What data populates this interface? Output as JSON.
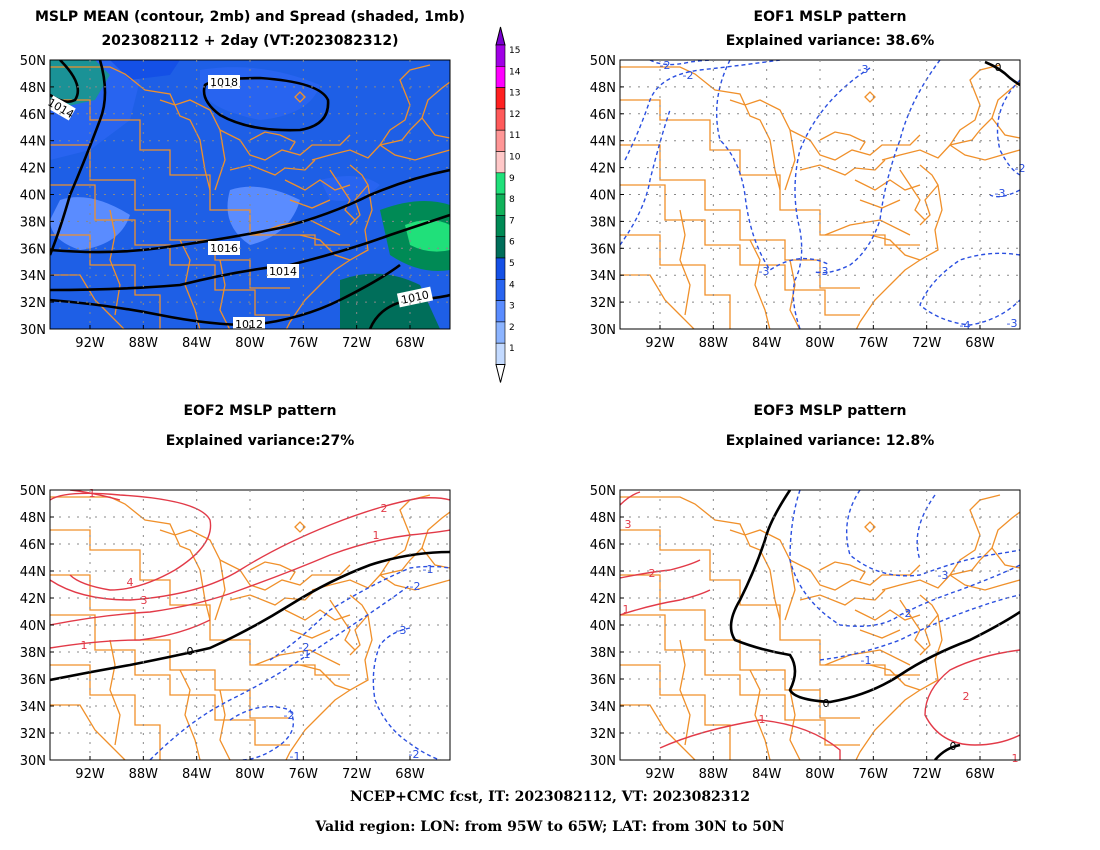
{
  "panels": [
    {
      "id": "mean",
      "title_line1": "MSLP MEAN (contour, 2mb) and Spread (shaded, 1mb)",
      "title_line2": "2023082112 + 2day (VT:2023082312)",
      "contour_labels": [
        "1018",
        "1016",
        "1014",
        "1012",
        "1010",
        "1014"
      ]
    },
    {
      "id": "eof1",
      "title_line1": "EOF1 MSLP pattern",
      "title_line2": "Explained variance: 38.6%",
      "contour_labels": [
        "-2",
        "-2",
        "-3",
        "0",
        "-3",
        "-3",
        "-3",
        "-4",
        "-3",
        "-2"
      ]
    },
    {
      "id": "eof2",
      "title_line1": "EOF2 MSLP pattern",
      "title_line2": "Explained variance:27%",
      "contour_labels": [
        "1",
        "4",
        "3",
        "2",
        "1",
        "-1",
        "-2",
        "-3",
        "0",
        "-1",
        "-2",
        "-2",
        "1",
        "-2",
        "-1"
      ]
    },
    {
      "id": "eof3",
      "title_line1": "EOF3 MSLP pattern",
      "title_line2": "Explained variance: 12.8%",
      "contour_labels": [
        "3",
        "2",
        "1",
        "-3",
        "-2",
        "-1",
        "0",
        "0",
        "2",
        "1",
        "1"
      ]
    }
  ],
  "lat_labels": [
    "50N",
    "48N",
    "46N",
    "44N",
    "42N",
    "40N",
    "38N",
    "36N",
    "34N",
    "32N",
    "30N"
  ],
  "lon_labels": [
    "92W",
    "88W",
    "84W",
    "80W",
    "76W",
    "72W",
    "68W"
  ],
  "colorbar": {
    "labels": [
      "15",
      "14",
      "13",
      "12",
      "11",
      "10",
      "9",
      "8",
      "7",
      "6",
      "5",
      "4",
      "3",
      "2",
      "1"
    ],
    "colors": [
      "#a100e6",
      "#ff00ff",
      "#ff2020",
      "#ff5a5a",
      "#ff9696",
      "#ffc8c8",
      "#20e07a",
      "#11b15a",
      "#008a55",
      "#006e5a",
      "#1450e6",
      "#2864f0",
      "#5a8cff",
      "#8cb4ff",
      "#c3daff"
    ]
  },
  "colors": {
    "coast": "#f0902a",
    "contour_neg": "#2a4fe0",
    "contour_pos": "#e23a48",
    "contour_zero": "#000000",
    "mean_bg": "#1e5fe6"
  },
  "footer": {
    "line1": "NCEP+CMC fcst, IT: 2023082112, VT: 2023082312",
    "line2": "Valid region: LON: from 95W to 65W; LAT: from 30N to 50N"
  }
}
